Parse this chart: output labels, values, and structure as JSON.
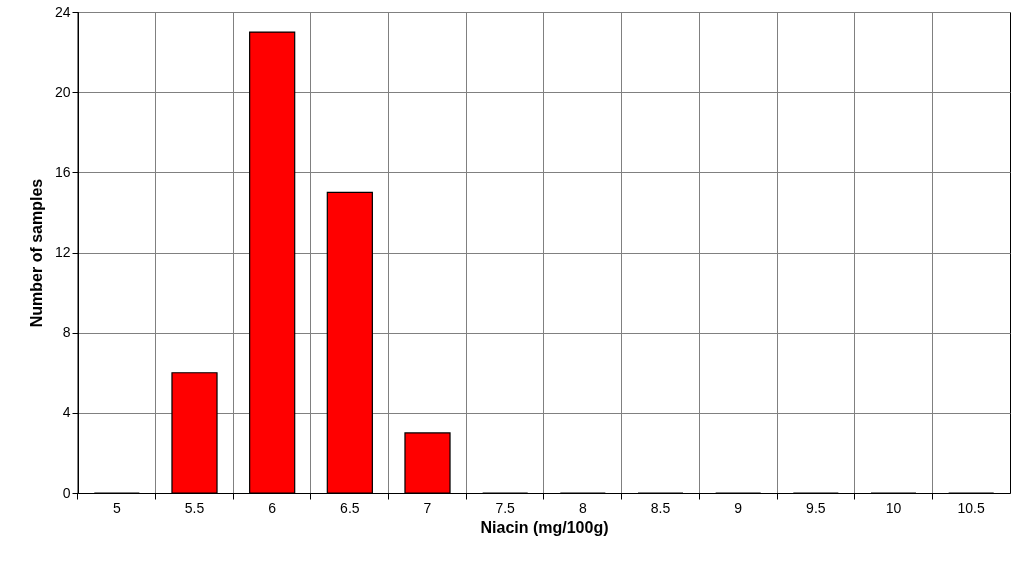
{
  "chart_data": {
    "type": "bar",
    "xlabel": "Niacin (mg/100g)",
    "ylabel": "Number of samples",
    "categories": [
      "5",
      "5.5",
      "6",
      "6.5",
      "7",
      "7.5",
      "8",
      "8.5",
      "9",
      "9.5",
      "10",
      "10.5"
    ],
    "values": [
      0,
      6,
      23,
      15,
      3,
      0,
      0,
      0,
      0,
      0,
      0,
      0
    ],
    "color": "#ff0000",
    "ylim": [
      0,
      24
    ],
    "yticks": [
      0,
      4,
      8,
      12,
      16,
      20,
      24
    ],
    "grid": true
  }
}
